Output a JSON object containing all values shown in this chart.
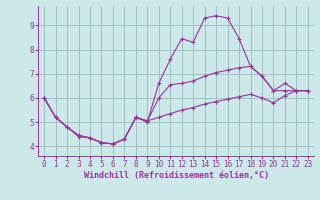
{
  "xlabel": "Windchill (Refroidissement éolien,°C)",
  "bg_color": "#cce8e8",
  "line_color": "#993399",
  "grid_color": "#99bbbb",
  "xlim": [
    -0.5,
    23.5
  ],
  "ylim": [
    3.6,
    9.8
  ],
  "xticks": [
    0,
    1,
    2,
    3,
    4,
    5,
    6,
    7,
    8,
    9,
    10,
    11,
    12,
    13,
    14,
    15,
    16,
    17,
    18,
    19,
    20,
    21,
    22,
    23
  ],
  "yticks": [
    4,
    5,
    6,
    7,
    8,
    9
  ],
  "line_peak_x": [
    0,
    1,
    2,
    3,
    4,
    5,
    6,
    7,
    8,
    9,
    10,
    11,
    12,
    13,
    14,
    15,
    16,
    17,
    18,
    19,
    20,
    21,
    22,
    23
  ],
  "line_peak_y": [
    6.0,
    5.2,
    4.8,
    4.4,
    4.35,
    4.15,
    4.1,
    4.3,
    5.2,
    5.0,
    6.6,
    7.6,
    8.45,
    8.3,
    9.3,
    9.4,
    9.3,
    8.45,
    7.3,
    6.9,
    6.3,
    6.3,
    6.3,
    6.3
  ],
  "line_mid_x": [
    0,
    1,
    2,
    3,
    4,
    5,
    6,
    7,
    8,
    9,
    10,
    11,
    12,
    13,
    14,
    15,
    16,
    17,
    18,
    19,
    20,
    21,
    22,
    23
  ],
  "line_mid_y": [
    6.0,
    5.2,
    4.8,
    4.45,
    4.35,
    4.15,
    4.1,
    4.3,
    5.2,
    5.05,
    6.0,
    6.55,
    6.6,
    6.7,
    6.9,
    7.05,
    7.15,
    7.25,
    7.3,
    6.9,
    6.3,
    6.6,
    6.3,
    6.3
  ],
  "line_low_x": [
    0,
    1,
    2,
    3,
    4,
    5,
    6,
    7,
    8,
    9,
    10,
    11,
    12,
    13,
    14,
    15,
    16,
    17,
    18,
    19,
    20,
    21,
    22,
    23
  ],
  "line_low_y": [
    6.0,
    5.2,
    4.8,
    4.45,
    4.35,
    4.15,
    4.1,
    4.3,
    5.2,
    5.05,
    5.2,
    5.35,
    5.5,
    5.6,
    5.75,
    5.85,
    5.95,
    6.05,
    6.15,
    6.0,
    5.8,
    6.1,
    6.3,
    6.3
  ],
  "marker_size": 2.5
}
